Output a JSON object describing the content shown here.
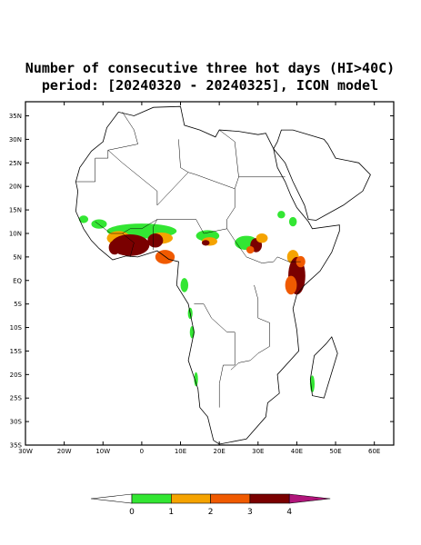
{
  "map": {
    "title": [
      "Number of consecutive three hot days (HI>40C)",
      "period: [20240320 - 20240325], ICON model"
    ],
    "lon_range": [
      -30,
      65
    ],
    "lat_range": [
      -35,
      38
    ],
    "lat_ticks": [
      {
        "value": 35,
        "label": "35N"
      },
      {
        "value": 30,
        "label": "30N"
      },
      {
        "value": 25,
        "label": "25N"
      },
      {
        "value": 20,
        "label": "20N"
      },
      {
        "value": 15,
        "label": "15N"
      },
      {
        "value": 10,
        "label": "10N"
      },
      {
        "value": 5,
        "label": "5N"
      },
      {
        "value": 0,
        "label": "EQ"
      },
      {
        "value": -5,
        "label": "5S"
      },
      {
        "value": -10,
        "label": "10S"
      },
      {
        "value": -15,
        "label": "15S"
      },
      {
        "value": -20,
        "label": "20S"
      },
      {
        "value": -25,
        "label": "25S"
      },
      {
        "value": -30,
        "label": "30S"
      },
      {
        "value": -35,
        "label": "35S"
      }
    ],
    "lon_ticks": [
      {
        "value": -30,
        "label": "30W"
      },
      {
        "value": -20,
        "label": "20W"
      },
      {
        "value": -10,
        "label": "10W"
      },
      0,
      {
        "value": 10,
        "label": "10E"
      },
      {
        "value": 20,
        "label": "20E"
      },
      {
        "value": 30,
        "label": "30E"
      },
      {
        "value": 40,
        "label": "40E"
      },
      {
        "value": 50,
        "label": "50E"
      },
      {
        "value": 60,
        "label": "60E"
      }
    ],
    "colorbar": {
      "levels": [
        0,
        1,
        2,
        3,
        4
      ],
      "colors": [
        "#ffffff",
        "#33e633",
        "#f5a300",
        "#f05a00",
        "#7a0000",
        "#b0157a"
      ]
    }
  }
}
